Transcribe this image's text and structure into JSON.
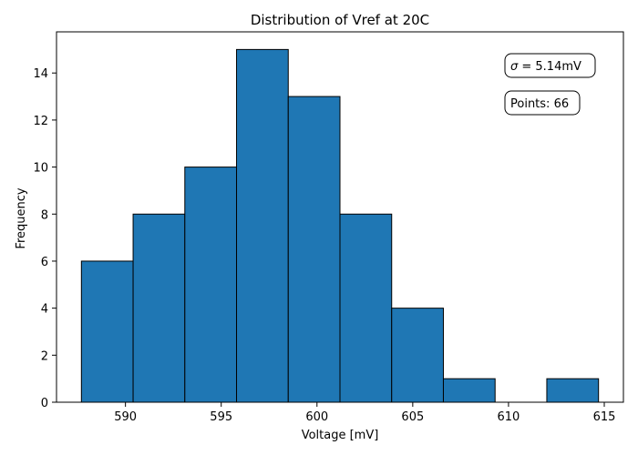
{
  "chart_data": {
    "type": "bar",
    "title": "Distribution of Vref at 20C",
    "xlabel": "Voltage [mV]",
    "ylabel": "Frequency",
    "xlim": [
      586.4,
      616.0
    ],
    "ylim": [
      0,
      15.75
    ],
    "xticks": [
      590,
      595,
      600,
      605,
      610,
      615
    ],
    "yticks": [
      0,
      2,
      4,
      6,
      8,
      10,
      12,
      14
    ],
    "bin_edges": [
      587.7,
      590.4,
      593.1,
      595.8,
      598.5,
      601.2,
      603.9,
      606.6,
      609.3,
      612.0,
      614.7
    ],
    "values": [
      6,
      8,
      10,
      15,
      13,
      8,
      4,
      1,
      0,
      1
    ],
    "bar_color": "#1f77b4",
    "edge_color": "#000000",
    "grid": false,
    "annotations": [
      {
        "id": "sigma",
        "label_prefix": "σ",
        "text": " = 5.14mV"
      },
      {
        "id": "points",
        "text": "Points: 66"
      }
    ]
  }
}
